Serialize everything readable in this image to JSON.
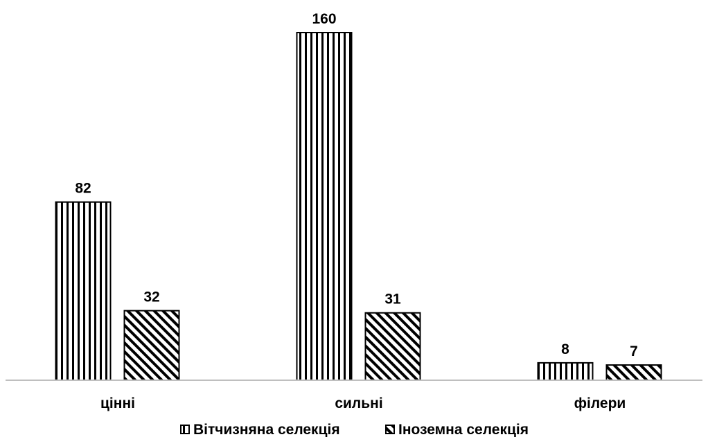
{
  "chart_data": {
    "type": "bar",
    "categories": [
      "цінні",
      "сильні",
      "філери"
    ],
    "series": [
      {
        "name": "Вітчизняна селекція",
        "values": [
          82,
          160,
          8
        ],
        "pattern": "vertical"
      },
      {
        "name": "Іноземна селекція",
        "values": [
          32,
          31,
          7
        ],
        "pattern": "diagonal"
      }
    ],
    "ylim": [
      0,
      160
    ],
    "grid": false,
    "legend_position": "bottom",
    "data_labels": true,
    "colors": {
      "stroke": "#000000",
      "fill": "#ffffff",
      "axis": "#bfbfbf"
    }
  }
}
